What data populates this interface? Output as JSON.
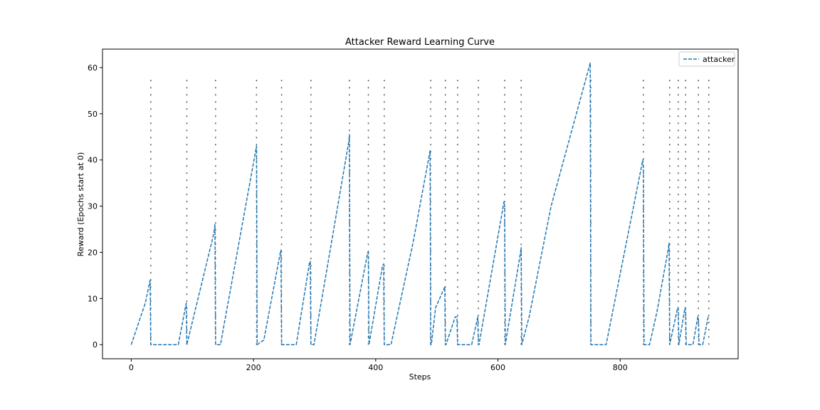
{
  "chart_data": {
    "type": "line",
    "title": "Attacker Reward Learning Curve",
    "xlabel": "Steps",
    "ylabel": "Reward (Epochs start at 0)",
    "xlim": [
      -47,
      993
    ],
    "ylim": [
      -3.05,
      64
    ],
    "xticks": [
      0,
      200,
      400,
      600,
      800
    ],
    "yticks": [
      0,
      10,
      20,
      30,
      40,
      50,
      60
    ],
    "grid": false,
    "legend_position": "upper right",
    "series": [
      {
        "name": "attacker",
        "color": "#1f77b4",
        "style": "dashed",
        "x": [
          0,
          23,
          31,
          32,
          33,
          77,
          90,
          91,
          135,
          137,
          138,
          146,
          205,
          206,
          217,
          244,
          245,
          246,
          270,
          292,
          293,
          294,
          299,
          356,
          357,
          358,
          387,
          388,
          389,
          411,
          413,
          414,
          425,
          461,
          489,
          490,
          491,
          498,
          513,
          514,
          515,
          530,
          533,
          534,
          535,
          557,
          567,
          568,
          569,
          610,
          611,
          612,
          637,
          638,
          639,
          651,
          687,
          751,
          752,
          753,
          777,
          837,
          838,
          839,
          848,
          860,
          879,
          880,
          881,
          894,
          895,
          896,
          906,
          907,
          908,
          919,
          927,
          928,
          929,
          935,
          944,
          945
        ],
        "y": [
          0,
          9,
          14,
          0,
          0,
          0,
          9,
          0,
          24,
          26,
          0,
          0,
          43,
          0,
          1,
          20,
          20.5,
          0,
          0,
          18,
          18,
          0,
          0,
          44,
          45.5,
          0,
          20,
          20,
          0,
          17,
          17.5,
          0,
          0,
          22,
          42,
          0,
          0,
          8,
          12.5,
          0,
          0,
          6,
          6,
          0,
          0,
          0,
          6,
          0,
          0,
          31,
          30,
          0,
          20,
          21,
          0,
          6,
          30,
          61,
          0,
          0,
          0,
          40,
          38,
          0,
          0,
          7,
          21,
          22,
          0,
          8,
          8,
          0,
          8,
          8,
          0,
          0,
          6,
          6,
          0,
          0,
          6,
          6
        ]
      }
    ],
    "epoch_markers": {
      "color": "#555555",
      "y_range": [
        0,
        58.5
      ],
      "x": [
        32,
        91,
        138,
        205,
        246,
        294,
        357,
        388,
        414,
        490,
        514,
        534,
        568,
        611,
        638,
        752,
        838,
        881,
        895,
        907,
        928,
        945
      ]
    }
  }
}
